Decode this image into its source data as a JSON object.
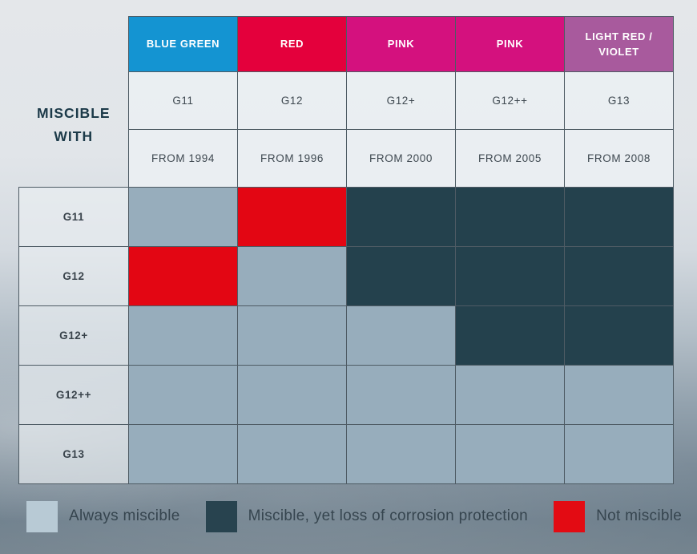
{
  "chart_data": {
    "type": "heatmap",
    "title": "MISCIBLE WITH",
    "columns": [
      {
        "color_name": "BLUE GREEN",
        "color": "#1494d2",
        "code": "G11",
        "since": "FROM 1994"
      },
      {
        "color_name": "RED",
        "color": "#e4003c",
        "code": "G12",
        "since": "FROM 1996"
      },
      {
        "color_name": "PINK",
        "color": "#d4117e",
        "code": "G12+",
        "since": "FROM 2000"
      },
      {
        "color_name": "PINK",
        "color": "#d4117e",
        "code": "G12++",
        "since": "FROM 2005"
      },
      {
        "color_name": "LIGHT RED / VIOLET",
        "color": "#a85a9d",
        "code": "G13",
        "since": "FROM 2008"
      }
    ],
    "row_labels": [
      "G11",
      "G12",
      "G12+",
      "G12++",
      "G13"
    ],
    "values": [
      [
        "always",
        "not",
        "loss",
        "loss",
        "loss"
      ],
      [
        "not",
        "always",
        "loss",
        "loss",
        "loss"
      ],
      [
        "always",
        "always",
        "always",
        "loss",
        "loss"
      ],
      [
        "always",
        "always",
        "always",
        "always",
        "always"
      ],
      [
        "always",
        "always",
        "always",
        "always",
        "always"
      ]
    ],
    "value_colors": {
      "always": "#97adbc",
      "loss": "#24414d",
      "not": "#e30613"
    },
    "legend": [
      {
        "key": "always",
        "label": "Always miscible",
        "color": "#b8cad5"
      },
      {
        "key": "loss",
        "label": "Miscible, yet loss of corrosion protection",
        "color": "#28434f"
      },
      {
        "key": "not",
        "label": "Not miscible",
        "color": "#e30b13"
      }
    ]
  }
}
